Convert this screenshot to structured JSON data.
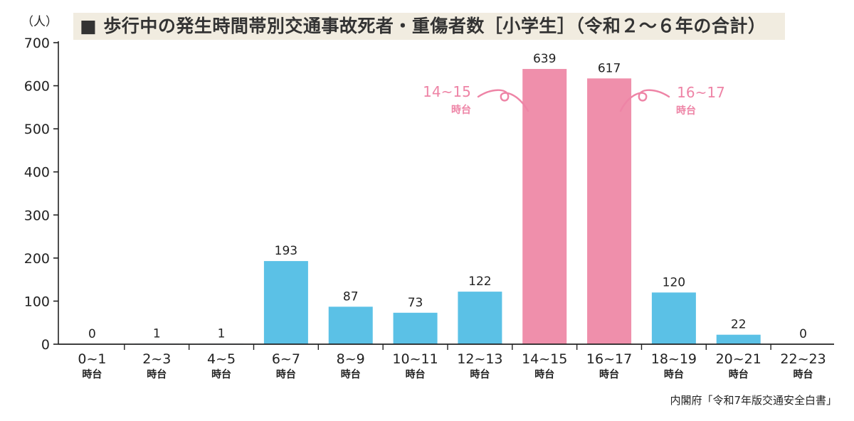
{
  "title": "■ 歩行中の発生時間帯別交通事故死者・重傷者数［小学生］（令和２〜６年の合計）",
  "y_unit": "（人）",
  "source": "内閣府「令和7年版交通安全白書」",
  "annotations": [
    {
      "line1": "14~15",
      "line2": "時台"
    },
    {
      "line1": "16~17",
      "line2": "時台"
    }
  ],
  "chart_data": {
    "type": "bar",
    "title": "■ 歩行中の発生時間帯別交通事故死者・重傷者数［小学生］（令和２〜６年の合計）",
    "ylabel": "（人）",
    "xlabel": "",
    "ylim": [
      0,
      700
    ],
    "yticks": [
      0,
      100,
      200,
      300,
      400,
      500,
      600,
      700
    ],
    "categories": [
      "0~1",
      "2~3",
      "4~5",
      "6~7",
      "8~9",
      "10~11",
      "12~13",
      "14~15",
      "16~17",
      "18~19",
      "20~21",
      "22~23"
    ],
    "category_suffix": "時台",
    "values": [
      0,
      1,
      1,
      193,
      87,
      73,
      122,
      639,
      617,
      120,
      22,
      0
    ],
    "highlight_categories": [
      "14~15",
      "16~17"
    ],
    "colors": {
      "normal": "#5bc1e6",
      "highlight": "#ef8fab",
      "annotation": "#ee84a6"
    },
    "grid": false,
    "legend": "none"
  }
}
